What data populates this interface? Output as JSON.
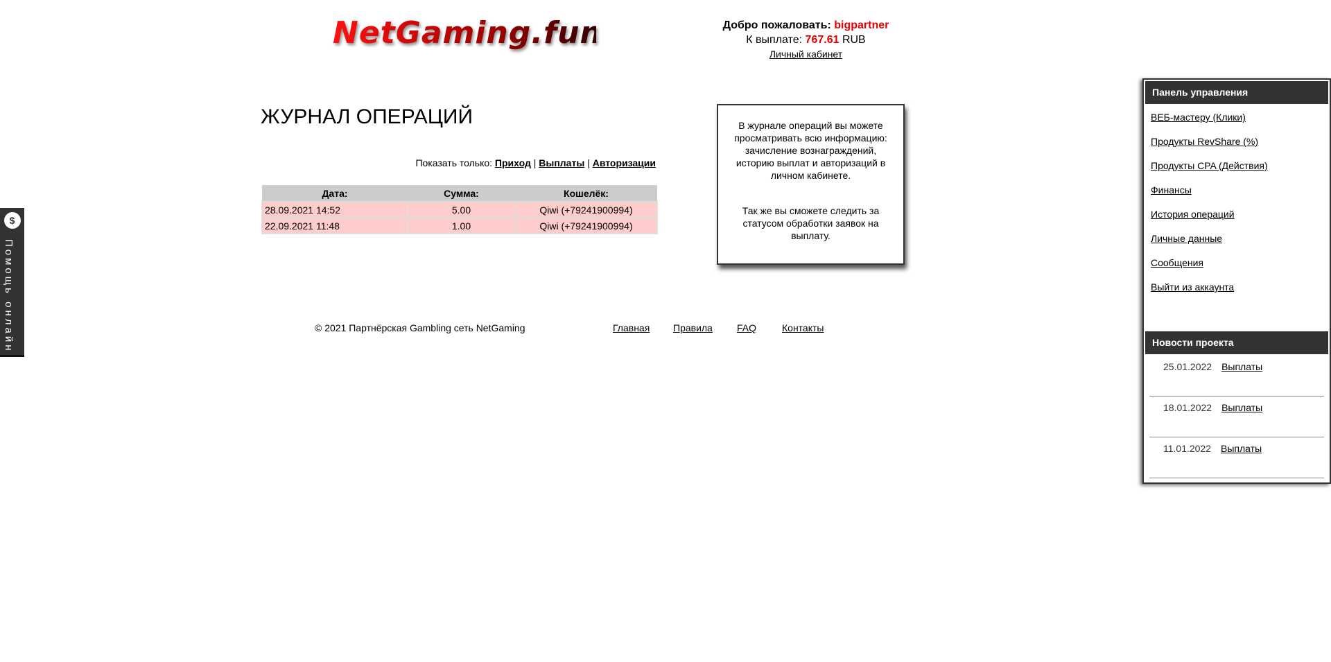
{
  "header": {
    "logo_text": "NetGaming.fun",
    "welcome_label": "Добро пожаловать:",
    "username": "bigpartner",
    "payout_label": "К выплате:",
    "payout_amount": "767.61",
    "currency": "RUB",
    "cabinet_link": "Личный кабинет",
    "accent_color": "#e00000"
  },
  "main": {
    "title": "ЖУРНАЛ ОПЕРАЦИЙ",
    "filter_label": "Показать только:",
    "filters": [
      "Приход",
      "Выплаты",
      "Авторизации"
    ],
    "separator": "|",
    "table": {
      "headers": [
        "Дата:",
        "Сумма:",
        "Кошелёк:"
      ],
      "rows": [
        [
          "28.09.2021 14:52",
          "5.00",
          "Qiwi (+79241900994)"
        ],
        [
          "22.09.2021 11:48",
          "1.00",
          "Qiwi (+79241900994)"
        ]
      ]
    }
  },
  "info": {
    "p1": "В журнале операций вы можете просматривать всю информацию: зачисление вознаграждений, историю выплат и авторизаций в личном кабинете.",
    "p2": "Так же вы сможете следить за статусом обработки заявок на выплату."
  },
  "footer": {
    "copyright": "© 2021 Партнёрская Gambling сеть NetGaming",
    "links": [
      "Главная",
      "Правила",
      "FAQ",
      "Контакты"
    ]
  },
  "help": {
    "icon": "chat-dollar-icon",
    "label": "Помощь онлайн"
  },
  "sidebar": {
    "panel_title": "Панель управления",
    "items": [
      "ВЕБ-мастеру (Клики)",
      "Продукты RevShare (%)",
      "Продукты CPA (Действия)",
      "Финансы",
      "История операций",
      "Личные данные",
      "Сообщения",
      "Выйти из аккаунта"
    ],
    "news_title": "Новости проекта",
    "news": [
      {
        "date": "25.01.2022",
        "title": "Выплаты"
      },
      {
        "date": "18.01.2022",
        "title": "Выплаты"
      },
      {
        "date": "11.01.2022",
        "title": "Выплаты"
      }
    ]
  }
}
